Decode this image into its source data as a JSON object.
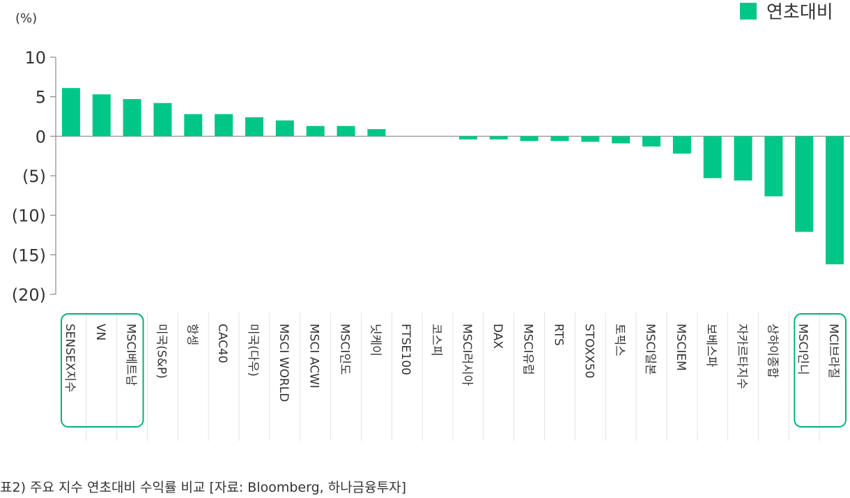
{
  "chart_data": {
    "type": "bar",
    "unit_label": "(%)",
    "series": [
      {
        "name": "연초대비",
        "values": [
          6.1,
          5.3,
          4.7,
          4.2,
          2.8,
          2.8,
          2.4,
          2.0,
          1.3,
          1.3,
          0.9,
          0.0,
          0.0,
          -0.4,
          -0.4,
          -0.6,
          -0.6,
          -0.7,
          -0.9,
          -1.3,
          -2.2,
          -5.3,
          -5.6,
          -7.6,
          -12.1,
          -16.2
        ]
      }
    ],
    "categories": [
      "SENSEX지수",
      "VN",
      "MSCI베트남",
      "미국(S&P)",
      "항셍",
      "CAC40",
      "미국(다우)",
      "MSCI WORLD",
      "MSCI ACWI",
      "MSCI인도",
      "닛케이",
      "FTSE100",
      "코스피",
      "MSCI러시아",
      "DAX",
      "MSCI유럽",
      "RTS",
      "STOXX50",
      "토픽스",
      "MSCI일본",
      "MSCIEM",
      "보베스파",
      "자카르타지수",
      "상하이종합",
      "MSCI인니",
      "MCI브라질"
    ],
    "yticks": [
      10,
      5,
      0,
      -5,
      -10,
      -15,
      -20
    ],
    "ytick_labels": [
      "10",
      "5",
      "0",
      "(5)",
      "(10)",
      "(15)",
      "(20)"
    ],
    "ylim": [
      -20,
      10
    ],
    "grid": false,
    "legend_position": "top-right",
    "highlight_groups": [
      [
        0,
        2
      ],
      [
        24,
        25
      ]
    ],
    "colors": {
      "bar": "#00c787",
      "highlight": "#00b377",
      "axis": "#888888",
      "divider": "#e3e3e3"
    }
  },
  "caption": "표2) 주요 지수 연초대비 수익률 비교 [자료: Bloomberg, 하나금융투자]"
}
